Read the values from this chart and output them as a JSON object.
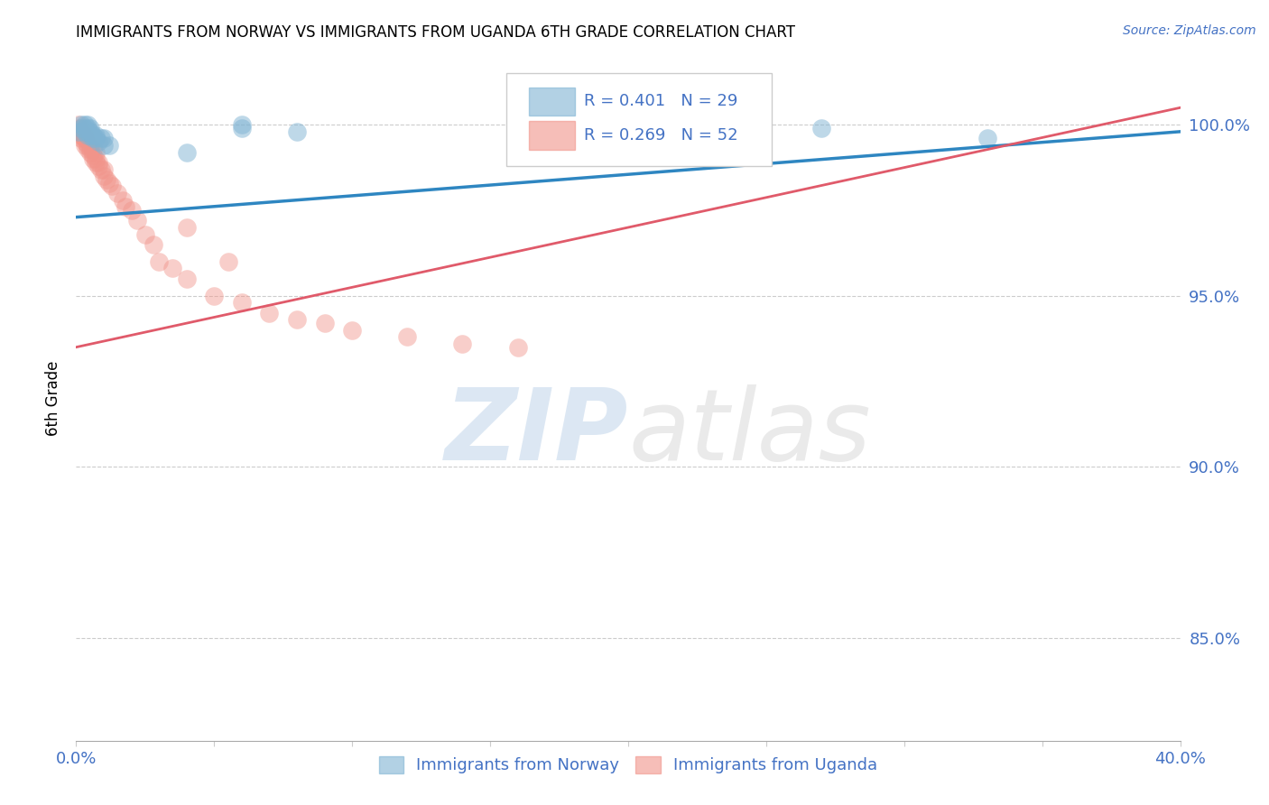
{
  "title": "IMMIGRANTS FROM NORWAY VS IMMIGRANTS FROM UGANDA 6TH GRADE CORRELATION CHART",
  "source": "Source: ZipAtlas.com",
  "ylabel": "6th Grade",
  "xlim": [
    0.0,
    0.4
  ],
  "ylim": [
    0.82,
    1.02
  ],
  "yticks": [
    0.85,
    0.9,
    0.95,
    1.0
  ],
  "yticklabels": [
    "85.0%",
    "90.0%",
    "95.0%",
    "100.0%"
  ],
  "legend_R_norway": "R = 0.401",
  "legend_N_norway": "N = 29",
  "legend_R_uganda": "R = 0.269",
  "legend_N_uganda": "N = 52",
  "norway_color": "#7FB3D3",
  "uganda_color": "#F1948A",
  "norway_line_color": "#2E86C1",
  "uganda_line_color": "#E05A6A",
  "grid_color": "#CCCCCC",
  "axis_color": "#4472C4",
  "norway_x": [
    0.001,
    0.002,
    0.002,
    0.003,
    0.003,
    0.003,
    0.004,
    0.004,
    0.004,
    0.004,
    0.005,
    0.005,
    0.005,
    0.006,
    0.006,
    0.007,
    0.007,
    0.008,
    0.009,
    0.01,
    0.01,
    0.012,
    0.04,
    0.06,
    0.06,
    0.08,
    0.17,
    0.27,
    0.33
  ],
  "norway_y": [
    0.998,
    0.999,
    1.0,
    0.998,
    0.999,
    1.0,
    0.997,
    0.998,
    0.999,
    1.0,
    0.997,
    0.998,
    0.999,
    0.996,
    0.997,
    0.996,
    0.997,
    0.995,
    0.996,
    0.994,
    0.996,
    0.994,
    0.992,
    1.0,
    0.999,
    0.998,
    0.998,
    0.999,
    0.996
  ],
  "uganda_x": [
    0.001,
    0.001,
    0.001,
    0.002,
    0.002,
    0.002,
    0.002,
    0.003,
    0.003,
    0.003,
    0.003,
    0.003,
    0.004,
    0.004,
    0.005,
    0.005,
    0.005,
    0.006,
    0.006,
    0.006,
    0.007,
    0.007,
    0.007,
    0.008,
    0.008,
    0.009,
    0.01,
    0.01,
    0.011,
    0.012,
    0.013,
    0.015,
    0.017,
    0.018,
    0.02,
    0.022,
    0.025,
    0.028,
    0.03,
    0.035,
    0.04,
    0.05,
    0.06,
    0.07,
    0.08,
    0.09,
    0.1,
    0.12,
    0.14,
    0.16,
    0.04,
    0.055
  ],
  "uganda_y": [
    0.999,
    1.0,
    0.998,
    0.997,
    0.999,
    0.998,
    0.996,
    0.996,
    0.997,
    0.995,
    0.994,
    0.996,
    0.993,
    0.994,
    0.992,
    0.993,
    0.994,
    0.99,
    0.991,
    0.993,
    0.989,
    0.99,
    0.992,
    0.988,
    0.989,
    0.987,
    0.985,
    0.987,
    0.984,
    0.983,
    0.982,
    0.98,
    0.978,
    0.976,
    0.975,
    0.972,
    0.968,
    0.965,
    0.96,
    0.958,
    0.955,
    0.95,
    0.948,
    0.945,
    0.943,
    0.942,
    0.94,
    0.938,
    0.936,
    0.935,
    0.97,
    0.96
  ],
  "norway_trendline_x": [
    0.0,
    0.4
  ],
  "norway_trendline_y": [
    0.973,
    0.998
  ],
  "uganda_trendline_x": [
    0.0,
    0.4
  ],
  "uganda_trendline_y": [
    0.935,
    1.005
  ]
}
